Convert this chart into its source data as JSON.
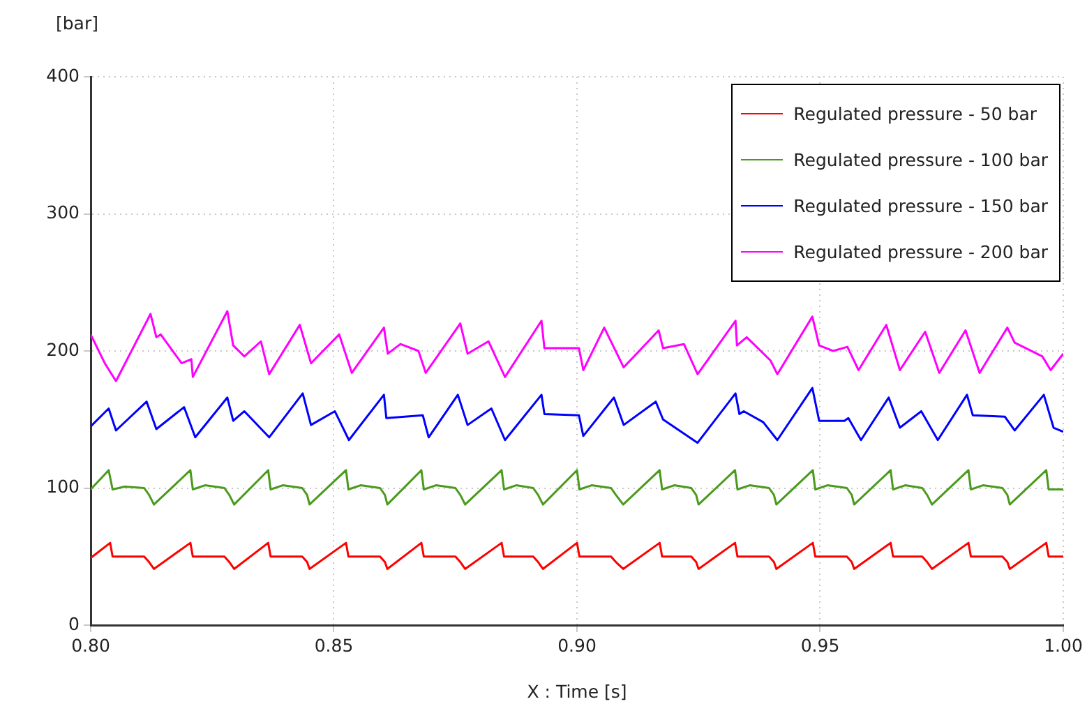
{
  "chart_data": {
    "type": "line",
    "xlabel": "X : Time [s]",
    "ylabel": "[bar]",
    "xlim": [
      0.8,
      1.0
    ],
    "xticks": [
      {
        "value": 0.8,
        "label": "0.80"
      },
      {
        "value": 0.85,
        "label": "0.85"
      },
      {
        "value": 0.9,
        "label": "0.90"
      },
      {
        "value": 0.95,
        "label": "0.95"
      },
      {
        "value": 1.0,
        "label": "1.00"
      }
    ],
    "ylim": [
      0,
      400
    ],
    "yticks": [
      0,
      100,
      200,
      300,
      400
    ],
    "grid": true,
    "legend": "top right",
    "marker": "none",
    "line_style": "solid",
    "series": [
      {
        "name": "Regulated pressure - 50 bar",
        "color": "#ff0000",
        "x": [
          0.8,
          0.804,
          0.8045,
          0.811,
          0.812,
          0.813,
          0.8205,
          0.821,
          0.8275,
          0.8285,
          0.8295,
          0.8365,
          0.837,
          0.8435,
          0.8445,
          0.845,
          0.8525,
          0.853,
          0.8595,
          0.8605,
          0.861,
          0.868,
          0.8685,
          0.875,
          0.876,
          0.877,
          0.8845,
          0.885,
          0.891,
          0.892,
          0.893,
          0.9,
          0.9005,
          0.907,
          0.908,
          0.9095,
          0.917,
          0.9175,
          0.9235,
          0.9245,
          0.925,
          0.9325,
          0.933,
          0.9395,
          0.9405,
          0.941,
          0.9485,
          0.949,
          0.9555,
          0.9565,
          0.957,
          0.9645,
          0.965,
          0.971,
          0.972,
          0.973,
          0.9805,
          0.981,
          0.9875,
          0.9885,
          0.989,
          0.9965,
          0.997,
          1.0
        ],
        "values": [
          49,
          60,
          50,
          50,
          46,
          41,
          60,
          50,
          50,
          46,
          41,
          60,
          50,
          50,
          46,
          41,
          60,
          50,
          50,
          46,
          41,
          60,
          50,
          50,
          46,
          41,
          60,
          50,
          50,
          46,
          41,
          60,
          50,
          50,
          46,
          41,
          60,
          50,
          50,
          46,
          41,
          60,
          50,
          50,
          46,
          41,
          60,
          50,
          50,
          46,
          41,
          60,
          50,
          50,
          46,
          41,
          60,
          50,
          50,
          46,
          41,
          60,
          50,
          50
        ]
      },
      {
        "name": "Regulated pressure - 100 bar",
        "color": "#4a9a1c",
        "x": [
          0.8,
          0.8037,
          0.8045,
          0.807,
          0.811,
          0.812,
          0.813,
          0.8205,
          0.821,
          0.8235,
          0.8275,
          0.8285,
          0.8295,
          0.8365,
          0.837,
          0.8395,
          0.8435,
          0.8445,
          0.845,
          0.8525,
          0.853,
          0.8555,
          0.8595,
          0.8605,
          0.861,
          0.868,
          0.8685,
          0.871,
          0.875,
          0.876,
          0.877,
          0.8845,
          0.885,
          0.8875,
          0.891,
          0.892,
          0.893,
          0.9,
          0.9005,
          0.903,
          0.907,
          0.908,
          0.9095,
          0.917,
          0.9175,
          0.92,
          0.9235,
          0.9245,
          0.925,
          0.9325,
          0.933,
          0.9355,
          0.9395,
          0.9405,
          0.941,
          0.9485,
          0.949,
          0.9515,
          0.9555,
          0.9565,
          0.957,
          0.9645,
          0.965,
          0.9675,
          0.971,
          0.972,
          0.973,
          0.9805,
          0.981,
          0.9835,
          0.9875,
          0.9885,
          0.989,
          0.9965,
          0.997,
          1.0
        ],
        "values": [
          99,
          113,
          99,
          101,
          100,
          95,
          88,
          113,
          99,
          102,
          100,
          95,
          88,
          113,
          99,
          102,
          100,
          95,
          88,
          113,
          99,
          102,
          100,
          95,
          88,
          113,
          99,
          102,
          100,
          95,
          88,
          113,
          99,
          102,
          100,
          95,
          88,
          113,
          99,
          102,
          100,
          95,
          88,
          113,
          99,
          102,
          100,
          95,
          88,
          113,
          99,
          102,
          100,
          95,
          88,
          113,
          99,
          102,
          100,
          95,
          88,
          113,
          99,
          102,
          100,
          95,
          88,
          113,
          99,
          102,
          100,
          95,
          88,
          113,
          99,
          99
        ]
      },
      {
        "name": "Regulated pressure - 150 bar",
        "color": "#0000ff",
        "x": [
          0.8,
          0.8037,
          0.8052,
          0.8115,
          0.8135,
          0.8192,
          0.8215,
          0.8281,
          0.8293,
          0.8316,
          0.8367,
          0.8436,
          0.8453,
          0.8502,
          0.8531,
          0.8603,
          0.8608,
          0.8683,
          0.8695,
          0.8755,
          0.8775,
          0.8824,
          0.8852,
          0.8927,
          0.8933,
          0.9004,
          0.9013,
          0.9076,
          0.9096,
          0.9162,
          0.9177,
          0.9248,
          0.9326,
          0.9334,
          0.9343,
          0.9383,
          0.9412,
          0.9484,
          0.9498,
          0.955,
          0.9558,
          0.9584,
          0.9641,
          0.9664,
          0.9708,
          0.9742,
          0.9802,
          0.9814,
          0.988,
          0.99,
          0.996,
          0.998,
          1.0
        ],
        "values": [
          145,
          158,
          142,
          163,
          143,
          159,
          137,
          166,
          149,
          156,
          137,
          169,
          146,
          156,
          135,
          168,
          151,
          153,
          137,
          168,
          146,
          158,
          135,
          168,
          154,
          153,
          138,
          166,
          146,
          163,
          150,
          133,
          169,
          154,
          156,
          148,
          135,
          173,
          149,
          149,
          151,
          135,
          166,
          144,
          156,
          135,
          168,
          153,
          152,
          142,
          168,
          144,
          141
        ]
      },
      {
        "name": "Regulated pressure - 200 bar",
        "color": "#ff00ff",
        "x": [
          0.8,
          0.8029,
          0.8052,
          0.8123,
          0.8135,
          0.8144,
          0.8187,
          0.8207,
          0.821,
          0.8281,
          0.8293,
          0.8316,
          0.835,
          0.8367,
          0.843,
          0.8453,
          0.8511,
          0.8537,
          0.8603,
          0.8611,
          0.8637,
          0.8674,
          0.8689,
          0.876,
          0.8775,
          0.8818,
          0.8852,
          0.8927,
          0.8933,
          0.9004,
          0.9013,
          0.9056,
          0.9096,
          0.9168,
          0.9177,
          0.922,
          0.9248,
          0.9326,
          0.9329,
          0.9349,
          0.9398,
          0.9412,
          0.9484,
          0.9498,
          0.9527,
          0.9556,
          0.9579,
          0.9636,
          0.9664,
          0.9716,
          0.9745,
          0.9799,
          0.9828,
          0.9885,
          0.99,
          0.9957,
          0.9974,
          1.0
        ],
        "values": [
          212,
          191,
          178,
          227,
          210,
          212,
          191,
          194,
          181,
          229,
          204,
          196,
          207,
          183,
          219,
          191,
          212,
          184,
          217,
          198,
          205,
          200,
          184,
          220,
          198,
          207,
          181,
          222,
          202,
          202,
          186,
          217,
          188,
          215,
          202,
          205,
          183,
          222,
          204,
          210,
          193,
          183,
          225,
          204,
          200,
          203,
          186,
          219,
          186,
          214,
          184,
          215,
          184,
          217,
          206,
          196,
          186,
          198
        ]
      }
    ]
  }
}
